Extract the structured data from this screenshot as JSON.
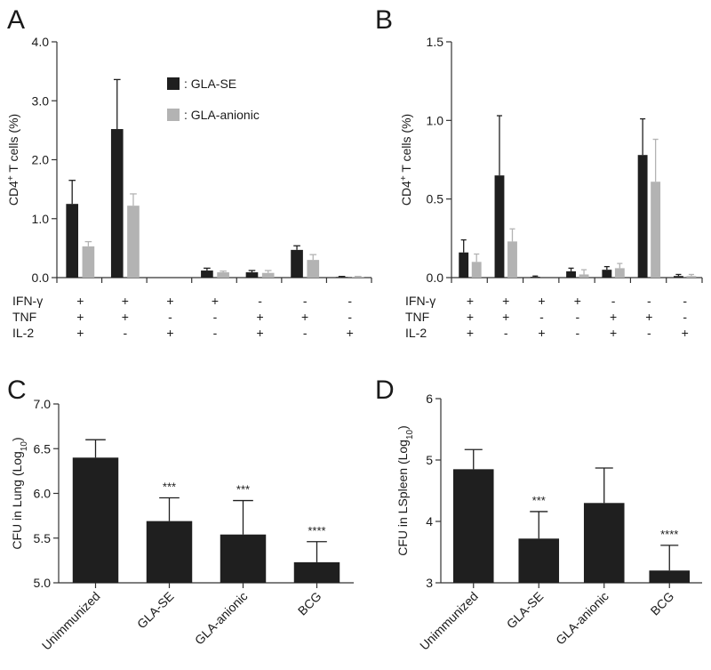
{
  "colors": {
    "dark": "#1f1f1f",
    "light": "#b3b3b3",
    "axis": "#333333"
  },
  "legend": [
    {
      "series": "dark",
      "label": ": GLA-SE"
    },
    {
      "series": "light",
      "label": ": GLA-anionic"
    }
  ],
  "cytokine_rows": [
    {
      "label": "IFN-γ",
      "signs": [
        "+",
        "+",
        "+",
        "+",
        "-",
        "-",
        "-"
      ]
    },
    {
      "label": "TNF",
      "signs": [
        "+",
        "+",
        "-",
        "-",
        "+",
        "+",
        "-"
      ]
    },
    {
      "label": "IL-2",
      "signs": [
        "+",
        "-",
        "+",
        "-",
        "+",
        "-",
        "+"
      ]
    }
  ],
  "chart_data": [
    {
      "panel": "A",
      "type": "bar",
      "ylabel": "CD4+ T cells (%)",
      "ylim": [
        0,
        4
      ],
      "yticks": [
        "0.0",
        "1.0",
        "2.0",
        "3.0",
        "4.0"
      ],
      "series": [
        {
          "name": "GLA-SE",
          "values": [
            1.25,
            2.52,
            0.0,
            0.12,
            0.09,
            0.47,
            0.01
          ],
          "errors": [
            0.4,
            0.84,
            0,
            0.04,
            0.03,
            0.07,
            0.01
          ]
        },
        {
          "name": "GLA-anionic",
          "values": [
            0.53,
            1.22,
            0.0,
            0.09,
            0.08,
            0.3,
            0.01
          ],
          "errors": [
            0.08,
            0.2,
            0,
            0.02,
            0.04,
            0.09,
            0.01
          ]
        }
      ]
    },
    {
      "panel": "B",
      "type": "bar",
      "ylabel": "CD4+ T cells (%)",
      "ylim": [
        0,
        1.5
      ],
      "yticks": [
        "0.0",
        "0.5",
        "1.0",
        "1.5"
      ],
      "series": [
        {
          "name": "GLA-SE",
          "values": [
            0.16,
            0.65,
            0.005,
            0.04,
            0.05,
            0.78,
            0.01
          ],
          "errors": [
            0.08,
            0.38,
            0.005,
            0.02,
            0.02,
            0.23,
            0.01
          ]
        },
        {
          "name": "GLA-anionic",
          "values": [
            0.1,
            0.23,
            0.0,
            0.02,
            0.06,
            0.61,
            0.01
          ],
          "errors": [
            0.05,
            0.08,
            0,
            0.03,
            0.03,
            0.27,
            0.01
          ]
        }
      ]
    },
    {
      "panel": "C",
      "type": "bar",
      "ylabel": "CFU in Lung (Log10)",
      "ylim": [
        5,
        7
      ],
      "yticks": [
        "5.0",
        "5.5",
        "6.0",
        "6.5",
        "7.0"
      ],
      "categories": [
        "Unimmunized",
        "GLA-SE",
        "GLA-anionic",
        "BCG"
      ],
      "values": [
        6.4,
        5.69,
        5.54,
        5.23
      ],
      "errors": [
        0.2,
        0.26,
        0.38,
        0.23
      ],
      "annotations": [
        "",
        "***",
        "***",
        "****"
      ]
    },
    {
      "panel": "D",
      "type": "bar",
      "ylabel": "CFU in LSpleen (Log10)",
      "ylim": [
        3,
        6
      ],
      "yticks": [
        "3",
        "4",
        "5",
        "6"
      ],
      "categories": [
        "Unimmunized",
        "GLA-SE",
        "GLA-anionic",
        "BCG"
      ],
      "values": [
        4.85,
        3.72,
        4.3,
        3.2
      ],
      "errors": [
        0.32,
        0.44,
        0.57,
        0.41
      ],
      "annotations": [
        "",
        "***",
        "",
        "****"
      ]
    }
  ]
}
